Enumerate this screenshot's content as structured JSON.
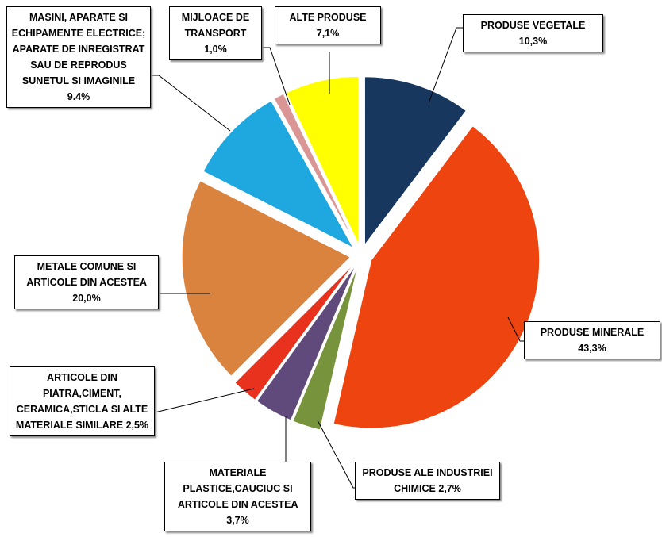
{
  "chart_data": {
    "type": "pie",
    "categories": [
      "PRODUSE VEGETALE",
      "PRODUSE MINERALE",
      "PRODUSE ALE INDUSTRIEI CHIMICE",
      "MATERIALE PLASTICE,CAUCIUC SI ARTICOLE DIN ACESTEA",
      "ARTICOLE DIN PIATRA,CIMENT, CERAMICA,STICLA SI ALTE MATERIALE SIMILARE",
      "METALE COMUNE SI ARTICOLE DIN ACESTEA",
      "MASINI, APARATE SI ECHIPAMENTE ELECTRICE; APARATE DE INREGISTRAT SAU DE REPRODUS SUNETUL SI IMAGINILE",
      "MIJLOACE DE TRANSPORT",
      "ALTE PRODUSE"
    ],
    "values": [
      10.3,
      43.3,
      2.7,
      3.7,
      2.5,
      20.0,
      9.4,
      1.0,
      7.1
    ],
    "value_labels": [
      "10,3%",
      "43,3%",
      "2,7%",
      "3,7%",
      "2,5%",
      "20,0%",
      "9.4%",
      "1,0%",
      "7,1%"
    ],
    "colors": [
      "#17375e",
      "#ee4410",
      "#77933c",
      "#604a7b",
      "#e8321e",
      "#d9833f",
      "#1fa8e0",
      "#d99694",
      "#ffff00"
    ]
  }
}
